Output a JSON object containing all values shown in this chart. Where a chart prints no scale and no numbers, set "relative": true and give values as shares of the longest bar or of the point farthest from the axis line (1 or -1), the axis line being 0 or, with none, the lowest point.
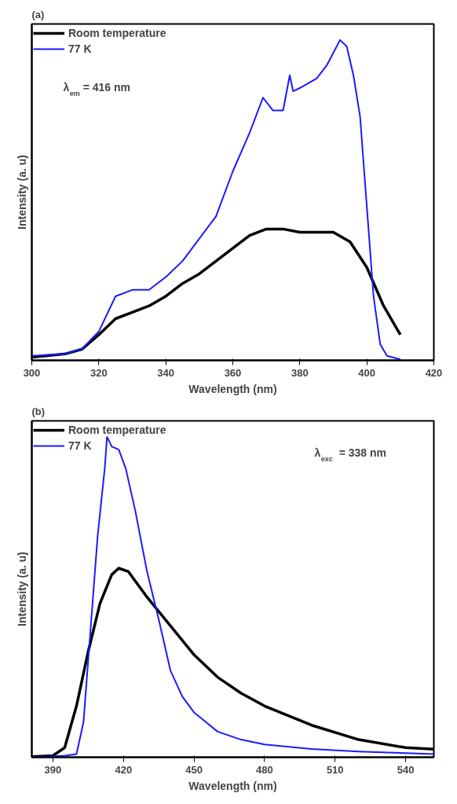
{
  "chart_data": [
    {
      "type": "line",
      "title": "(a)",
      "xlabel": "Wavelength (nm)",
      "ylabel": "Intensity (a. u)",
      "relative": true,
      "xlim": [
        300,
        420
      ],
      "xticks": [
        300,
        320,
        340,
        360,
        380,
        400,
        420
      ],
      "tick_labels": "x",
      "legend": "top left",
      "annotations": [
        "λ$_{em}$ = 416 nm"
      ],
      "series": [
        {
          "name": "Room temperature",
          "color": "#000000",
          "x": [
            300,
            310,
            315,
            320,
            325,
            330,
            335,
            340,
            345,
            350,
            355,
            360,
            365,
            370,
            375,
            380,
            385,
            390,
            395,
            400,
            405,
            410
          ],
          "values": [
            0.01,
            0.02,
            0.035,
            0.08,
            0.13,
            0.15,
            0.17,
            0.2,
            0.24,
            0.27,
            0.31,
            0.35,
            0.39,
            0.41,
            0.41,
            0.4,
            0.4,
            0.4,
            0.37,
            0.29,
            0.17,
            0.08
          ]
        },
        {
          "name": "77 K",
          "color": "#1a1aff",
          "x": [
            300,
            310,
            315,
            320,
            325,
            330,
            335,
            340,
            345,
            350,
            355,
            360,
            365,
            369,
            372,
            375,
            377,
            378,
            380,
            385,
            388,
            390,
            392,
            394,
            396,
            398,
            400,
            402,
            404,
            406,
            410
          ],
          "values": [
            0.014,
            0.02,
            0.036,
            0.09,
            0.2,
            0.22,
            0.22,
            0.26,
            0.31,
            0.38,
            0.45,
            0.59,
            0.71,
            0.82,
            0.78,
            0.78,
            0.89,
            0.84,
            0.85,
            0.88,
            0.92,
            0.96,
            1,
            0.98,
            0.89,
            0.76,
            0.48,
            0.2,
            0.05,
            0.014,
            0.003
          ]
        }
      ]
    },
    {
      "type": "line",
      "title": "(b)",
      "xlabel": "Wavelength (nm)",
      "ylabel": "Intensity (a. u)",
      "relative": true,
      "xlim": [
        381,
        552
      ],
      "xticks": [
        390,
        420,
        450,
        480,
        510,
        540
      ],
      "tick_labels": "x",
      "legend": "top left",
      "annotations": [
        "λ$_{exc}$ = 338 nm"
      ],
      "series": [
        {
          "name": "Room temperature",
          "color": "#000000",
          "x": [
            381,
            390,
            395,
            400,
            405,
            410,
            415,
            418,
            422,
            430,
            440,
            450,
            460,
            470,
            480,
            500,
            520,
            540,
            552
          ],
          "values": [
            0.002,
            0.005,
            0.03,
            0.16,
            0.33,
            0.48,
            0.57,
            0.59,
            0.58,
            0.5,
            0.41,
            0.32,
            0.25,
            0.2,
            0.16,
            0.1,
            0.055,
            0.03,
            0.025
          ]
        },
        {
          "name": "77 K",
          "color": "#1a1aff",
          "x": [
            381,
            395,
            400,
            403,
            406,
            409,
            412,
            413,
            415,
            418,
            421,
            425,
            430,
            435,
            440,
            445,
            450,
            460,
            470,
            480,
            500,
            520,
            540,
            552
          ],
          "values": [
            0,
            0.005,
            0.01,
            0.11,
            0.4,
            0.69,
            0.9,
            1,
            0.97,
            0.96,
            0.9,
            0.77,
            0.58,
            0.43,
            0.27,
            0.19,
            0.14,
            0.08,
            0.055,
            0.04,
            0.026,
            0.018,
            0.013,
            0.01
          ]
        }
      ]
    }
  ]
}
